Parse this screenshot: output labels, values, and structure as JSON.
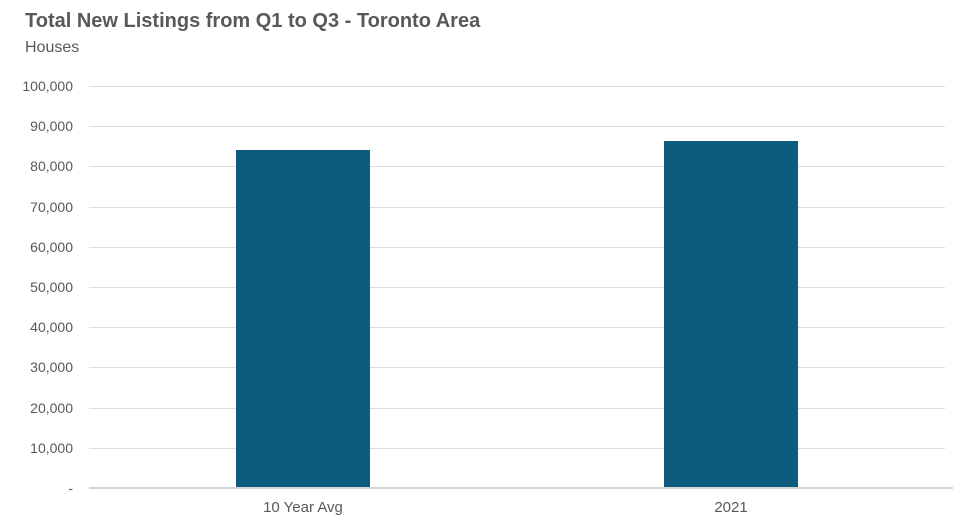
{
  "chart_data": {
    "type": "bar",
    "title": "Total New Listings from Q1 to Q3 - Toronto Area",
    "subtitle": "Houses",
    "categories": [
      "10 Year Avg",
      "2021"
    ],
    "values": [
      84000,
      86200
    ],
    "xlabel": "",
    "ylabel": "",
    "ylim": [
      0,
      100000
    ],
    "ytick_step": 10000,
    "ytick_labels_top_to_bottom": [
      "100,000",
      "90,000",
      "80,000",
      "70,000",
      "60,000",
      "50,000",
      "40,000",
      "30,000",
      "20,000",
      "10,000",
      "-"
    ],
    "grid": true,
    "legend_position": "none",
    "colors": {
      "bar": "#0d5c7d",
      "gridline": "#dcdcdc",
      "axis_line": "#d4d4d4",
      "text": "#595959",
      "background": "#ffffff"
    }
  }
}
